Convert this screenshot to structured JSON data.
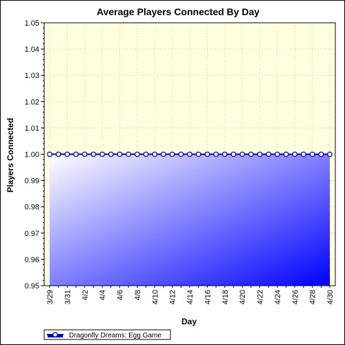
{
  "chart_data": {
    "type": "area",
    "title": "Average Players Connected By Day",
    "xlabel": "Day",
    "ylabel": "Players Connected",
    "ylim": [
      0.95,
      1.05
    ],
    "y_ticks": [
      "0.95",
      "0.96",
      "0.97",
      "0.98",
      "0.99",
      "1.00",
      "1.01",
      "1.02",
      "1.03",
      "1.04",
      "1.05"
    ],
    "x_ticks": [
      "3/29",
      "3/31",
      "4/2",
      "4/4",
      "4/6",
      "4/8",
      "4/10",
      "4/12",
      "4/14",
      "4/16",
      "4/18",
      "4/20",
      "4/22",
      "4/24",
      "4/26",
      "4/28",
      "4/30"
    ],
    "x": [
      "3/29",
      "3/30",
      "3/31",
      "4/1",
      "4/2",
      "4/3",
      "4/4",
      "4/5",
      "4/6",
      "4/7",
      "4/8",
      "4/9",
      "4/10",
      "4/11",
      "4/12",
      "4/13",
      "4/14",
      "4/15",
      "4/16",
      "4/17",
      "4/18",
      "4/19",
      "4/20",
      "4/21",
      "4/22",
      "4/23",
      "4/24",
      "4/25",
      "4/26",
      "4/27",
      "4/28",
      "4/29",
      "4/30"
    ],
    "series": [
      {
        "name": "Dragonfly Dreams: Egg Game",
        "values": [
          1,
          1,
          1,
          1,
          1,
          1,
          1,
          1,
          1,
          1,
          1,
          1,
          1,
          1,
          1,
          1,
          1,
          1,
          1,
          1,
          1,
          1,
          1,
          1,
          1,
          1,
          1,
          1,
          1,
          1,
          1,
          1,
          1
        ]
      }
    ],
    "grid": true,
    "legend_position": "bottom-left",
    "colors": {
      "plot_background": "#ffffe0",
      "line": "#0000cc",
      "fill_start": "#ffffff",
      "fill_end": "#0000ff",
      "marker_fill": "#ffffff",
      "grid": "#c8c8a0"
    }
  }
}
